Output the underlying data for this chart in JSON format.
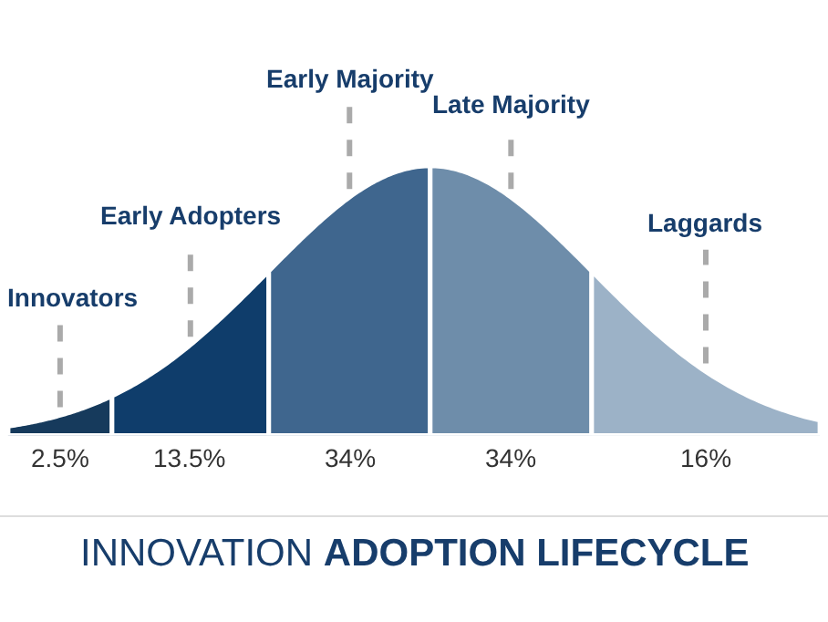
{
  "chart_data": {
    "type": "other",
    "title": "INNOVATION ADOPTION LIFECYCLE",
    "categories": [
      "Innovators",
      "Early Adopters",
      "Early Majority",
      "Late Majority",
      "Laggards"
    ],
    "values": [
      2.5,
      13.5,
      34,
      34,
      16
    ],
    "value_labels": [
      "2.5%",
      "13.5%",
      "34%",
      "34%",
      "16%"
    ],
    "colors": [
      "#163a5c",
      "#0f3d6b",
      "#3f668e",
      "#6e8daa",
      "#9cb2c7"
    ]
  }
}
